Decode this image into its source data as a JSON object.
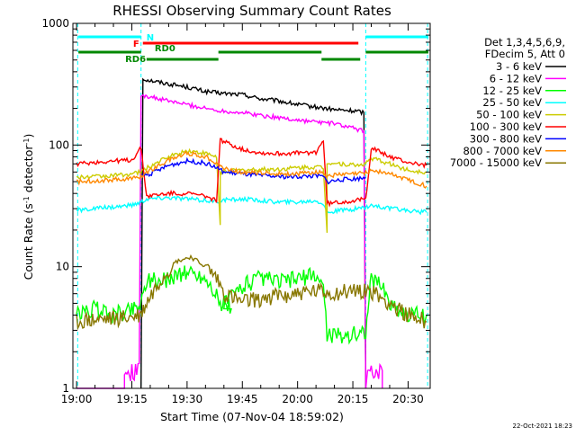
{
  "chart_data": {
    "type": "line",
    "title": "RHESSI Observing Summary Count Rates",
    "xlabel": "Start Time (07-Nov-04 18:59:02)",
    "ylabel_main": "Count Rate (s",
    "ylabel_sup1": "-1",
    "ylabel_mid": " detector",
    "ylabel_sup2": "-1",
    "ylabel_end": ")",
    "y_scale": "log",
    "ylim": [
      1,
      1000
    ],
    "xlim_minutes": [
      -1.0,
      96.0
    ],
    "x_tick_labels": [
      "19:00",
      "19:15",
      "19:30",
      "19:45",
      "20:00",
      "20:15",
      "20:30"
    ],
    "y_tick_labels": [
      "1",
      "10",
      "100",
      "1000"
    ],
    "legend_header": [
      "Det 1,3,4,5,6,9,",
      "FDecim 5, Att 0"
    ],
    "legend_position": "right",
    "timestamp": "22-Oct-2021 18:23",
    "series": [
      {
        "name": "3 - 6 keV",
        "color": "#000000",
        "points": [
          [
            17.5,
            0
          ],
          [
            18,
            350
          ],
          [
            22,
            330
          ],
          [
            30,
            300
          ],
          [
            35,
            275
          ],
          [
            40,
            265
          ],
          [
            45,
            260
          ],
          [
            50,
            240
          ],
          [
            55,
            230
          ],
          [
            60,
            215
          ],
          [
            65,
            205
          ],
          [
            70,
            195
          ],
          [
            76,
            190
          ],
          [
            78,
            185
          ],
          [
            78.5,
            0
          ]
        ]
      },
      {
        "name": "6 - 12 keV",
        "color": "#ff00ff",
        "points": [
          [
            0,
            0
          ],
          [
            13,
            0
          ],
          [
            13,
            1.3
          ],
          [
            17,
            1.4
          ],
          [
            17.5,
            260
          ],
          [
            22,
            240
          ],
          [
            30,
            215
          ],
          [
            35,
            200
          ],
          [
            40,
            190
          ],
          [
            45,
            185
          ],
          [
            50,
            175
          ],
          [
            55,
            168
          ],
          [
            60,
            160
          ],
          [
            65,
            155
          ],
          [
            70,
            150
          ],
          [
            76,
            135
          ],
          [
            78,
            130
          ],
          [
            78.5,
            0
          ],
          [
            79,
            1.4
          ],
          [
            83,
            1.4
          ],
          [
            83,
            0
          ]
        ]
      },
      {
        "name": "12 - 25 keV",
        "color": "#00ff00",
        "points": [
          [
            0,
            4
          ],
          [
            5,
            4.5
          ],
          [
            10,
            4
          ],
          [
            15,
            4.5
          ],
          [
            17.5,
            5
          ],
          [
            19,
            8
          ],
          [
            23,
            7.5
          ],
          [
            27,
            8.5
          ],
          [
            31,
            9
          ],
          [
            35,
            8
          ],
          [
            38,
            6
          ],
          [
            39,
            4.5
          ],
          [
            40,
            5
          ],
          [
            42,
            4.5
          ],
          [
            40,
            5
          ],
          [
            45,
            7
          ],
          [
            50,
            8
          ],
          [
            55,
            7.5
          ],
          [
            60,
            8
          ],
          [
            65,
            8.5
          ],
          [
            67,
            7
          ],
          [
            68,
            2.8
          ],
          [
            72,
            2.7
          ],
          [
            76,
            2.8
          ],
          [
            78.5,
            3
          ],
          [
            80,
            8
          ],
          [
            83,
            7
          ],
          [
            85,
            5
          ],
          [
            90,
            4
          ],
          [
            95,
            4
          ]
        ]
      },
      {
        "name": "25 - 50 keV",
        "color": "#00ffff",
        "points": [
          [
            0,
            29
          ],
          [
            5,
            30
          ],
          [
            10,
            31
          ],
          [
            15,
            32
          ],
          [
            17.5,
            34
          ],
          [
            19,
            36
          ],
          [
            25,
            37
          ],
          [
            30,
            36
          ],
          [
            35,
            35
          ],
          [
            38,
            34
          ],
          [
            39,
            35
          ],
          [
            45,
            36
          ],
          [
            50,
            35
          ],
          [
            55,
            34
          ],
          [
            60,
            34
          ],
          [
            65,
            35
          ],
          [
            67,
            33
          ],
          [
            68,
            28
          ],
          [
            72,
            29
          ],
          [
            76,
            30
          ],
          [
            78.5,
            31
          ],
          [
            80,
            32
          ],
          [
            85,
            30
          ],
          [
            90,
            29
          ],
          [
            95,
            28
          ]
        ]
      },
      {
        "name": "50 - 100 keV",
        "color": "#cccc00",
        "points": [
          [
            0,
            54
          ],
          [
            5,
            55
          ],
          [
            10,
            56
          ],
          [
            15,
            58
          ],
          [
            17.5,
            60
          ],
          [
            19,
            65
          ],
          [
            25,
            80
          ],
          [
            30,
            90
          ],
          [
            35,
            85
          ],
          [
            38,
            80
          ],
          [
            39,
            22
          ],
          [
            39,
            60
          ],
          [
            45,
            62
          ],
          [
            50,
            63
          ],
          [
            55,
            63
          ],
          [
            60,
            65
          ],
          [
            65,
            66
          ],
          [
            67,
            65
          ],
          [
            68,
            19
          ],
          [
            68,
            72
          ],
          [
            72,
            70
          ],
          [
            76,
            68
          ],
          [
            78.5,
            70
          ],
          [
            80,
            78
          ],
          [
            85,
            70
          ],
          [
            90,
            62
          ],
          [
            95,
            60
          ]
        ]
      },
      {
        "name": "100 - 300 keV",
        "color": "#ff0000",
        "points": [
          [
            0,
            70
          ],
          [
            5,
            72
          ],
          [
            10,
            74
          ],
          [
            15,
            75
          ],
          [
            17.5,
            95
          ],
          [
            19,
            38
          ],
          [
            25,
            40
          ],
          [
            30,
            40
          ],
          [
            35,
            38
          ],
          [
            38,
            35
          ],
          [
            39,
            110
          ],
          [
            45,
            92
          ],
          [
            50,
            86
          ],
          [
            55,
            85
          ],
          [
            60,
            86
          ],
          [
            65,
            87
          ],
          [
            67,
            110
          ],
          [
            68,
            33
          ],
          [
            72,
            34
          ],
          [
            76,
            35
          ],
          [
            78.5,
            36
          ],
          [
            80,
            95
          ],
          [
            85,
            80
          ],
          [
            90,
            72
          ],
          [
            95,
            68
          ]
        ]
      },
      {
        "name": "300 - 800 keV",
        "color": "#0000ff",
        "points": [
          [
            17.5,
            56
          ],
          [
            20,
            58
          ],
          [
            25,
            68
          ],
          [
            30,
            74
          ],
          [
            35,
            71
          ],
          [
            38,
            65
          ],
          [
            40,
            60
          ],
          [
            45,
            58
          ],
          [
            50,
            56
          ],
          [
            55,
            55
          ],
          [
            60,
            55
          ],
          [
            65,
            56
          ],
          [
            67,
            55
          ],
          [
            68,
            50
          ],
          [
            72,
            52
          ],
          [
            76,
            53
          ],
          [
            78.5,
            54
          ]
        ]
      },
      {
        "name": "800 - 7000 keV",
        "color": "#ff8800",
        "points": [
          [
            0,
            50
          ],
          [
            5,
            51
          ],
          [
            10,
            52
          ],
          [
            15,
            53
          ],
          [
            17.5,
            55
          ],
          [
            19,
            60
          ],
          [
            25,
            75
          ],
          [
            30,
            86
          ],
          [
            35,
            80
          ],
          [
            38,
            72
          ],
          [
            40,
            64
          ],
          [
            45,
            60
          ],
          [
            50,
            59
          ],
          [
            55,
            58
          ],
          [
            60,
            58
          ],
          [
            65,
            60
          ],
          [
            67,
            59
          ],
          [
            68,
            56
          ],
          [
            72,
            57
          ],
          [
            76,
            58
          ],
          [
            78.5,
            59
          ],
          [
            80,
            62
          ],
          [
            85,
            58
          ],
          [
            90,
            52
          ],
          [
            95,
            46
          ]
        ]
      },
      {
        "name": "7000 - 15000 keV",
        "color": "#887700",
        "points": [
          [
            0,
            3.5
          ],
          [
            5,
            3.6
          ],
          [
            10,
            3.7
          ],
          [
            15,
            3.8
          ],
          [
            17.5,
            4
          ],
          [
            19,
            5
          ],
          [
            23,
            8
          ],
          [
            27,
            11
          ],
          [
            31,
            12
          ],
          [
            35,
            10
          ],
          [
            38,
            8
          ],
          [
            40,
            6
          ],
          [
            45,
            5
          ],
          [
            50,
            5.5
          ],
          [
            55,
            5.8
          ],
          [
            60,
            6
          ],
          [
            65,
            6.2
          ],
          [
            70,
            6
          ],
          [
            75,
            6.3
          ],
          [
            78.5,
            6.5
          ],
          [
            80,
            6.2
          ],
          [
            85,
            5
          ],
          [
            90,
            4
          ],
          [
            95,
            3.5
          ]
        ]
      }
    ],
    "flags": [
      {
        "label": "N",
        "color": "#00ffff",
        "row": 0,
        "segments": [
          [
            0.5,
            17.5
          ],
          [
            78.5,
            95.5
          ]
        ]
      },
      {
        "label": "F",
        "color": "#ff0000",
        "row": 1,
        "segments": [
          [
            18,
            76.5
          ]
        ]
      },
      {
        "label": "RD0",
        "color": "#008800",
        "row": 2,
        "segments": [
          [
            0.5,
            17.5
          ],
          [
            38.5,
            66.5
          ],
          [
            78.5,
            95.5
          ]
        ]
      },
      {
        "label": "RD6",
        "color": "#008800",
        "row": 3,
        "segments": [
          [
            19,
            38.5
          ],
          [
            66.5,
            77
          ]
        ]
      }
    ]
  }
}
